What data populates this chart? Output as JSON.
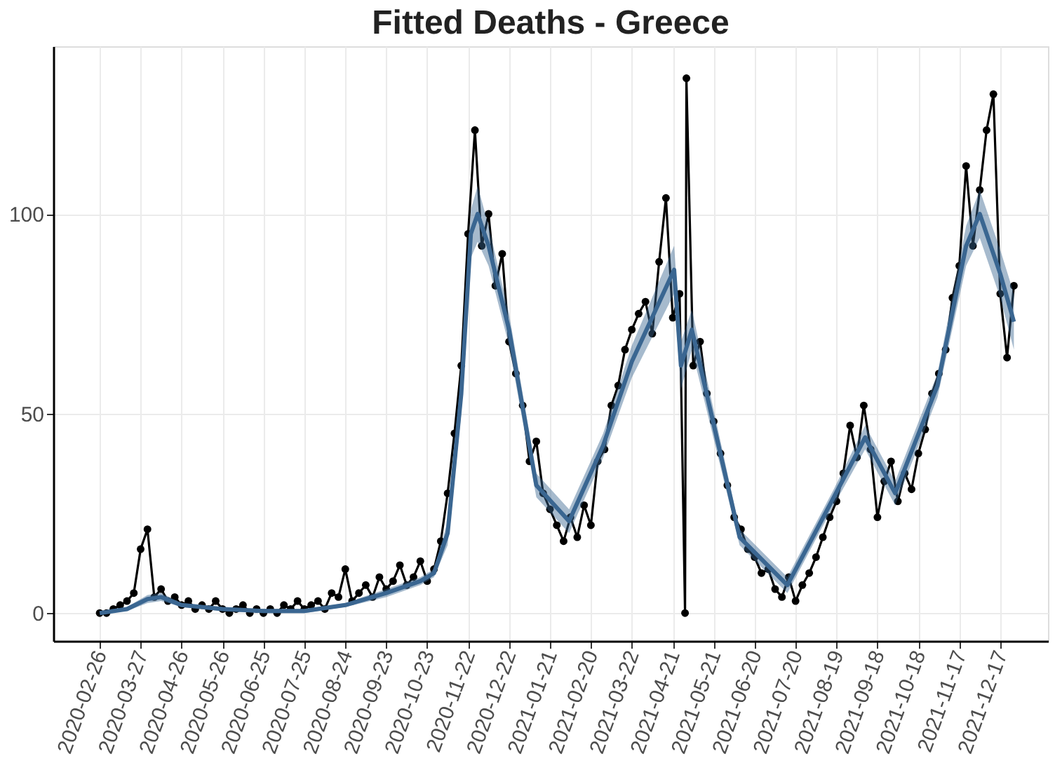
{
  "chart_data": {
    "type": "line",
    "title": "Fitted Deaths - Greece",
    "xlim": [
      "2020-01-23",
      "2022-01-21"
    ],
    "ylim": [
      -7,
      142
    ],
    "xticks": [
      "2020-02-26",
      "2020-03-27",
      "2020-04-26",
      "2020-05-26",
      "2020-06-25",
      "2020-07-25",
      "2020-08-24",
      "2020-09-23",
      "2020-10-23",
      "2020-11-22",
      "2020-12-22",
      "2021-01-21",
      "2021-02-20",
      "2021-03-22",
      "2021-04-21",
      "2021-05-21",
      "2021-06-20",
      "2021-07-20",
      "2021-08-19",
      "2021-09-18",
      "2021-10-18",
      "2021-11-17",
      "2021-12-17"
    ],
    "yticks": [
      0,
      50,
      100
    ],
    "grid": true,
    "series": [
      {
        "marker": "circle",
        "line_style": "solid",
        "color": "#000000",
        "x": [
          "2020-02-26",
          "2020-03-02",
          "2020-03-07",
          "2020-03-12",
          "2020-03-17",
          "2020-03-22",
          "2020-03-27",
          "2020-04-01",
          "2020-04-06",
          "2020-04-11",
          "2020-04-16",
          "2020-04-21",
          "2020-04-26",
          "2020-05-01",
          "2020-05-06",
          "2020-05-11",
          "2020-05-16",
          "2020-05-21",
          "2020-05-26",
          "2020-05-31",
          "2020-06-05",
          "2020-06-10",
          "2020-06-15",
          "2020-06-20",
          "2020-06-25",
          "2020-06-30",
          "2020-07-05",
          "2020-07-10",
          "2020-07-15",
          "2020-07-20",
          "2020-07-25",
          "2020-07-30",
          "2020-08-04",
          "2020-08-09",
          "2020-08-14",
          "2020-08-19",
          "2020-08-24",
          "2020-08-29",
          "2020-09-03",
          "2020-09-08",
          "2020-09-13",
          "2020-09-18",
          "2020-09-23",
          "2020-09-28",
          "2020-10-03",
          "2020-10-08",
          "2020-10-13",
          "2020-10-18",
          "2020-10-23",
          "2020-10-28",
          "2020-11-02",
          "2020-11-07",
          "2020-11-12",
          "2020-11-17",
          "2020-11-22",
          "2020-11-27",
          "2020-12-02",
          "2020-12-07",
          "2020-12-12",
          "2020-12-17",
          "2020-12-22",
          "2020-12-27",
          "2021-01-01",
          "2021-01-06",
          "2021-01-11",
          "2021-01-16",
          "2021-01-21",
          "2021-01-26",
          "2021-01-31",
          "2021-02-05",
          "2021-02-10",
          "2021-02-15",
          "2021-02-20",
          "2021-02-25",
          "2021-03-02",
          "2021-03-07",
          "2021-03-12",
          "2021-03-17",
          "2021-03-22",
          "2021-03-27",
          "2021-04-01",
          "2021-04-06",
          "2021-04-11",
          "2021-04-16",
          "2021-04-21",
          "2021-04-26",
          "2021-04-30",
          "2021-05-01",
          "2021-05-06",
          "2021-05-11",
          "2021-05-16",
          "2021-05-21",
          "2021-05-26",
          "2021-05-31",
          "2021-06-05",
          "2021-06-10",
          "2021-06-15",
          "2021-06-20",
          "2021-06-25",
          "2021-06-30",
          "2021-07-05",
          "2021-07-10",
          "2021-07-15",
          "2021-07-20",
          "2021-07-25",
          "2021-07-30",
          "2021-08-04",
          "2021-08-09",
          "2021-08-14",
          "2021-08-19",
          "2021-08-24",
          "2021-08-29",
          "2021-09-03",
          "2021-09-08",
          "2021-09-13",
          "2021-09-18",
          "2021-09-23",
          "2021-09-28",
          "2021-10-03",
          "2021-10-08",
          "2021-10-13",
          "2021-10-18",
          "2021-10-23",
          "2021-10-28",
          "2021-11-02",
          "2021-11-07",
          "2021-11-12",
          "2021-11-17",
          "2021-11-22",
          "2021-11-27",
          "2021-12-02",
          "2021-12-07",
          "2021-12-12",
          "2021-12-17",
          "2021-12-22",
          "2021-12-27"
        ],
        "values": [
          0,
          0,
          1,
          2,
          3,
          5,
          16,
          21,
          4,
          6,
          3,
          4,
          2,
          3,
          1,
          2,
          1,
          3,
          1,
          0,
          1,
          2,
          0,
          1,
          0,
          1,
          0,
          2,
          1,
          3,
          1,
          2,
          3,
          1,
          5,
          4,
          11,
          3,
          5,
          7,
          4,
          9,
          6,
          8,
          12,
          7,
          9,
          13,
          8,
          11,
          18,
          30,
          45,
          62,
          95,
          121,
          92,
          100,
          82,
          90,
          68,
          60,
          52,
          38,
          43,
          30,
          26,
          22,
          18,
          24,
          19,
          27,
          22,
          38,
          41,
          52,
          57,
          66,
          71,
          75,
          78,
          70,
          88,
          104,
          74,
          80,
          0,
          134,
          62,
          68,
          55,
          48,
          40,
          32,
          24,
          21,
          16,
          14,
          10,
          11,
          6,
          4,
          9,
          3,
          7,
          10,
          14,
          19,
          24,
          28,
          35,
          47,
          39,
          52,
          41,
          24,
          33,
          38,
          28,
          35,
          31,
          40,
          46,
          55,
          60,
          66,
          79,
          87,
          112,
          92,
          106,
          121,
          130,
          80,
          64,
          82
        ]
      },
      {
        "marker": "none",
        "line_style": "solid",
        "color": "#3a6691",
        "x": [
          "2020-02-26",
          "2020-03-17",
          "2020-04-01",
          "2020-04-11",
          "2020-04-26",
          "2020-05-26",
          "2020-06-25",
          "2020-07-25",
          "2020-08-24",
          "2020-09-23",
          "2020-10-18",
          "2020-10-28",
          "2020-11-07",
          "2020-11-17",
          "2020-11-24",
          "2020-11-29",
          "2020-12-07",
          "2020-12-22",
          "2021-01-11",
          "2021-02-04",
          "2021-03-01",
          "2021-03-22",
          "2021-04-22",
          "2021-04-27",
          "2021-05-05",
          "2021-06-09",
          "2021-07-14",
          "2021-08-17",
          "2021-09-09",
          "2021-10-01",
          "2021-11-01",
          "2021-11-22",
          "2021-12-02",
          "2021-12-17",
          "2021-12-27"
        ],
        "values": [
          0,
          1,
          3.5,
          4,
          2,
          1,
          0.5,
          0.5,
          2,
          5,
          8,
          10,
          20,
          55,
          95,
          100,
          92,
          71,
          32,
          23,
          42,
          63,
          86,
          62,
          71,
          19,
          7,
          29,
          44,
          30,
          57,
          92,
          100,
          85,
          73
        ],
        "lower": [
          0,
          0.5,
          2.5,
          3,
          1.5,
          0.5,
          0,
          0,
          1.5,
          4,
          7,
          9,
          17,
          50,
          89,
          93,
          87,
          67,
          29,
          20,
          39,
          59,
          80,
          56,
          66,
          17,
          5,
          27,
          41,
          27,
          54,
          87,
          94,
          79,
          66
        ],
        "upper": [
          0.5,
          1.5,
          4.5,
          5,
          2.5,
          1.5,
          1,
          1,
          2.5,
          6,
          9,
          11,
          23,
          60,
          101,
          107,
          97,
          75,
          35,
          26,
          45,
          67,
          92,
          68,
          76,
          21,
          9,
          31,
          47,
          33,
          60,
          97,
          106,
          91,
          80
        ]
      }
    ]
  }
}
